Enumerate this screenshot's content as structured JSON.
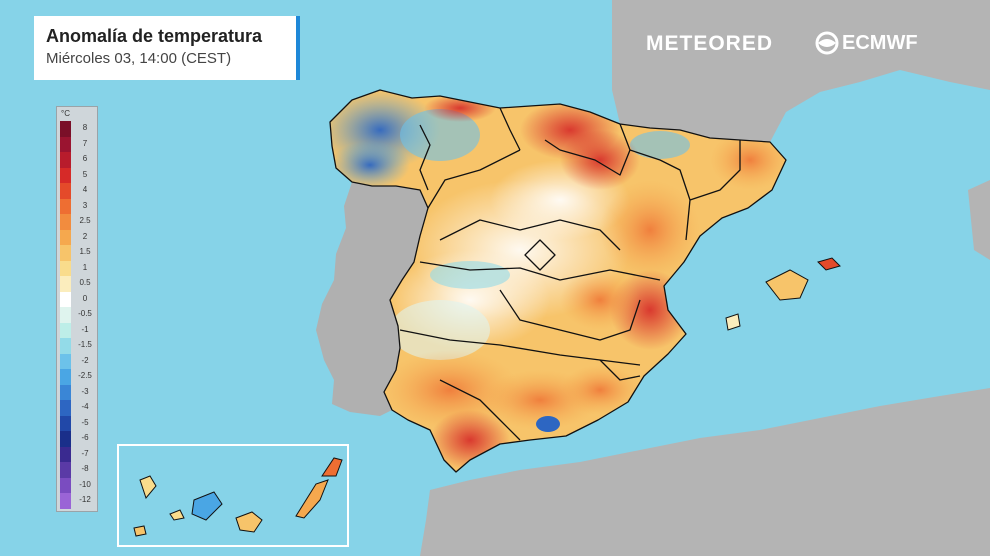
{
  "title": "Anomalía de temperatura",
  "subtitle": "Miércoles 03, 14:00 (CEST)",
  "brands": {
    "meteored": "METEORED",
    "ecmwf": "ECMWF"
  },
  "legend": {
    "unit": "°C",
    "entries": [
      {
        "label": "8",
        "color": "#7a0f28"
      },
      {
        "label": "7",
        "color": "#9a1430"
      },
      {
        "label": "6",
        "color": "#b81c2c"
      },
      {
        "label": "5",
        "color": "#d62a28"
      },
      {
        "label": "4",
        "color": "#e44a2a"
      },
      {
        "label": "3",
        "color": "#ee6e32"
      },
      {
        "label": "2.5",
        "color": "#f28c3e"
      },
      {
        "label": "2",
        "color": "#f5a84e"
      },
      {
        "label": "1.5",
        "color": "#f7c46a"
      },
      {
        "label": "1",
        "color": "#f9dc8c"
      },
      {
        "label": "0.5",
        "color": "#fbedbd"
      },
      {
        "label": "0",
        "color": "#ffffff"
      },
      {
        "label": "-0.5",
        "color": "#dff4ee"
      },
      {
        "label": "-1",
        "color": "#bdeee8"
      },
      {
        "label": "-1.5",
        "color": "#93dbe8"
      },
      {
        "label": "-2",
        "color": "#6cc2ea"
      },
      {
        "label": "-2.5",
        "color": "#4aa6e4"
      },
      {
        "label": "-3",
        "color": "#3a86d6"
      },
      {
        "label": "-4",
        "color": "#2d66c2"
      },
      {
        "label": "-5",
        "color": "#2148a8"
      },
      {
        "label": "-6",
        "color": "#1a2f8a"
      },
      {
        "label": "-7",
        "color": "#3a2a90"
      },
      {
        "label": "-8",
        "color": "#5a3aa6"
      },
      {
        "label": "-10",
        "color": "#7a4cc0"
      },
      {
        "label": "-12",
        "color": "#9a64d6"
      }
    ]
  },
  "colors": {
    "sea": "#86d3e8",
    "land_other": "#b7b7b7",
    "accent": "#1e88d8"
  }
}
